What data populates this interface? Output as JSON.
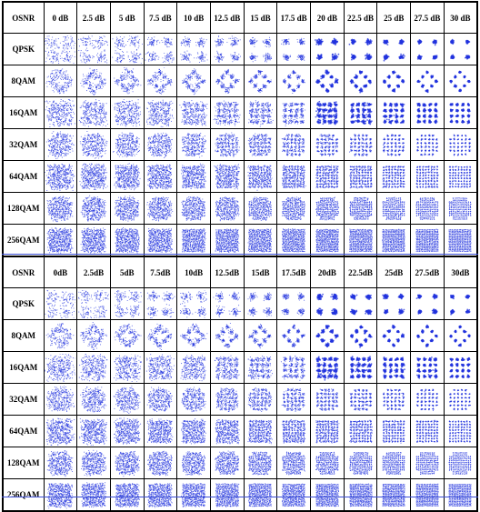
{
  "tables": [
    {
      "header_label": "OSNR",
      "columns": [
        "0 dB",
        "2.5 dB",
        "5 dB",
        "7.5 dB",
        "10 dB",
        "12.5 dB",
        "15 dB",
        "17.5 dB",
        "20 dB",
        "22.5 dB",
        "25 dB",
        "27.5 dB",
        "30 dB"
      ],
      "rows": [
        "QPSK",
        "8QAM",
        "16QAM",
        "32QAM",
        "64QAM",
        "128QAM",
        "256QAM"
      ]
    },
    {
      "header_label": "OSNR",
      "columns": [
        "0dB",
        "2.5dB",
        "5dB",
        "7.5dB",
        "10dB",
        "12.5dB",
        "15dB",
        "17.5dB",
        "20dB",
        "22.5dB",
        "25dB",
        "27.5dB",
        "30dB"
      ],
      "rows": [
        "QPSK",
        "8QAM",
        "16QAM",
        "32QAM",
        "64QAM",
        "128QAM",
        "256QAM"
      ]
    }
  ],
  "osnr_db": [
    0,
    2.5,
    5,
    7.5,
    10,
    12.5,
    15,
    17.5,
    20,
    22.5,
    25,
    27.5,
    30
  ],
  "modulation_orders": [
    4,
    8,
    16,
    32,
    64,
    128,
    256
  ],
  "point_color": "#2233dd"
}
